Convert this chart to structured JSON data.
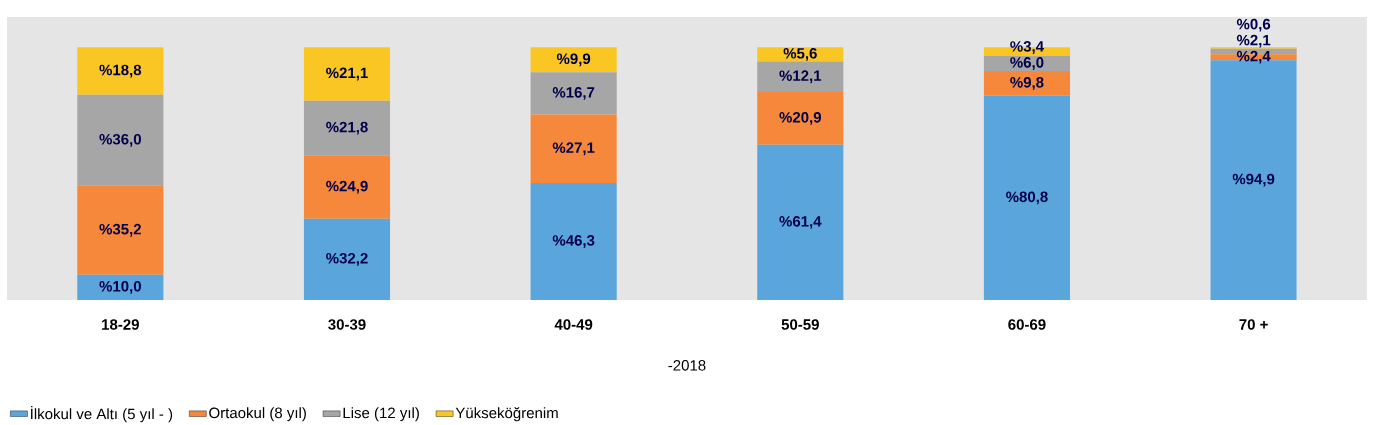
{
  "chart_data": {
    "type": "bar",
    "stacked": true,
    "xlabel": "-2018",
    "categories": [
      "18-29",
      "30-39",
      "40-49",
      "50-59",
      "60-69",
      "70 +"
    ],
    "tick_labels": "x",
    "legend": "bottom left",
    "series": [
      {
        "name": "İlkokul ve Altı (5 yıl - )",
        "color": "#5aa6dc",
        "values": [
          10.0,
          32.2,
          46.3,
          61.4,
          80.8,
          94.9
        ],
        "value_labels": [
          "%10,0",
          "%32,2",
          "%46,3",
          "%61,4",
          "%80,8",
          "%94,9"
        ]
      },
      {
        "name": "Ortaokul (8 yıl)",
        "color": "#f5883a",
        "values": [
          35.2,
          24.9,
          27.1,
          20.9,
          9.8,
          2.4
        ],
        "value_labels": [
          "%35,2",
          "%24,9",
          "%27,1",
          "%20,9",
          "%9,8",
          "%2,4"
        ]
      },
      {
        "name": "Lise (12 yıl)",
        "color": "#a6a6a6",
        "values": [
          36.0,
          21.8,
          16.7,
          12.1,
          6.0,
          2.1
        ],
        "value_labels": [
          "%36,0",
          "%21,8",
          "%16,7",
          "%12,1",
          "%6,0",
          "%2,1"
        ]
      },
      {
        "name": "Yükseköğrenim",
        "color": "#f9c623",
        "values": [
          18.8,
          21.1,
          9.9,
          5.6,
          3.4,
          0.6
        ],
        "value_labels": [
          "%18,8",
          "%21,1",
          "%9,9",
          "%5,6",
          "%3,4",
          "%0,6"
        ]
      }
    ]
  }
}
